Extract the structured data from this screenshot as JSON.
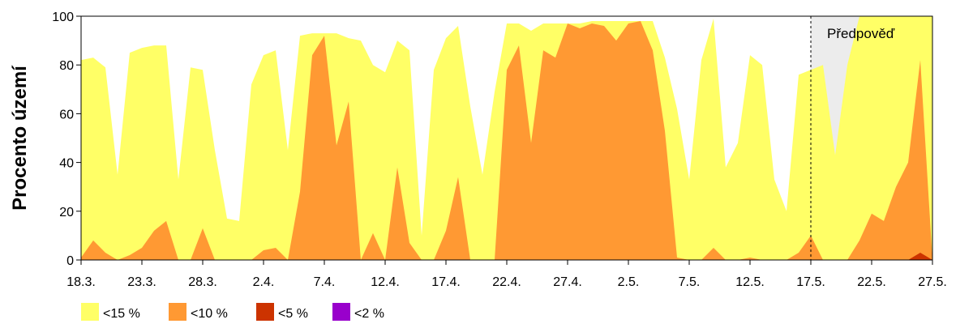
{
  "chart_data": {
    "type": "area",
    "title": "",
    "xlabel": "",
    "ylabel": "Procento území",
    "ylim": [
      0,
      100
    ],
    "yticks": [
      0,
      20,
      40,
      60,
      80,
      100
    ],
    "x_tick_labels": [
      "18.3.",
      "23.3.",
      "28.3.",
      "2.4.",
      "7.4.",
      "12.4.",
      "17.4.",
      "22.4.",
      "27.4.",
      "2.5.",
      "7.5.",
      "12.5.",
      "17.5.",
      "22.5.",
      "27.5."
    ],
    "x_tick_index": [
      0,
      5,
      10,
      15,
      20,
      25,
      30,
      35,
      40,
      45,
      50,
      55,
      60,
      65,
      70
    ],
    "x_days": [
      "18.3.",
      "19.3.",
      "20.3.",
      "21.3.",
      "22.3.",
      "23.3.",
      "24.3.",
      "25.3.",
      "26.3.",
      "27.3.",
      "28.3.",
      "29.3.",
      "30.3.",
      "31.3.",
      "1.4.",
      "2.4.",
      "3.4.",
      "4.4.",
      "5.4.",
      "6.4.",
      "7.4.",
      "8.4.",
      "9.4.",
      "10.4.",
      "11.4.",
      "12.4.",
      "13.4.",
      "14.4.",
      "15.4.",
      "16.4.",
      "17.4.",
      "18.4.",
      "19.4.",
      "20.4.",
      "21.4.",
      "22.4.",
      "23.4.",
      "24.4.",
      "25.4.",
      "26.4.",
      "27.4.",
      "28.4.",
      "29.4.",
      "30.4.",
      "1.5.",
      "2.5.",
      "3.5.",
      "4.5.",
      "5.5.",
      "6.5.",
      "7.5.",
      "8.5.",
      "9.5.",
      "10.5.",
      "11.5.",
      "12.5.",
      "13.5.",
      "14.5.",
      "15.5.",
      "16.5.",
      "17.5.",
      "18.5.",
      "19.5.",
      "20.5.",
      "21.5.",
      "22.5.",
      "23.5.",
      "24.5.",
      "25.5.",
      "26.5.",
      "27.5."
    ],
    "forecast": {
      "start": "17.5.",
      "label": "Předpověď",
      "fill": "#ececec"
    },
    "grid": false,
    "legend_position": "bottom-left",
    "series": [
      {
        "name": "<15 %",
        "color": "#ffff66",
        "values": [
          82,
          83,
          79,
          35,
          85,
          87,
          88,
          88,
          33,
          79,
          78,
          45,
          17,
          16,
          72,
          84,
          86,
          45,
          92,
          93,
          93,
          93,
          91,
          90,
          80,
          77,
          90,
          86,
          10,
          78,
          91,
          96,
          63,
          35,
          69,
          97,
          97,
          94,
          97,
          97,
          97,
          97,
          98,
          98,
          98,
          98,
          98,
          98,
          83,
          62,
          33,
          82,
          99,
          38,
          48,
          84,
          80,
          33,
          20,
          76,
          78,
          80,
          43,
          80,
          100,
          100,
          100,
          100,
          100,
          100,
          100
        ]
      },
      {
        "name": "<10 %",
        "color": "#ff9933",
        "values": [
          1,
          8,
          3,
          0,
          2,
          5,
          12,
          16,
          0,
          0,
          13,
          0,
          0,
          0,
          0,
          4,
          5,
          0,
          28,
          84,
          92,
          47,
          65,
          0,
          11,
          0,
          38,
          7,
          0,
          0,
          12,
          34,
          0,
          0,
          0,
          78,
          88,
          48,
          86,
          83,
          97,
          95,
          97,
          96,
          90,
          97,
          98,
          86,
          53,
          1,
          0,
          0,
          5,
          0,
          0,
          1,
          0,
          0,
          0,
          3,
          10,
          0,
          0,
          0,
          8,
          19,
          16,
          30,
          40,
          82,
          0
        ]
      },
      {
        "name": "<5 %",
        "color": "#cc3300",
        "values": [
          0,
          0,
          0,
          0,
          0,
          0,
          0,
          0,
          0,
          0,
          0,
          0,
          0,
          0,
          0,
          0,
          0,
          0,
          0,
          0,
          0,
          0,
          0,
          0,
          0,
          0,
          0,
          0,
          0,
          0,
          0,
          0,
          0,
          0,
          0,
          0,
          0,
          0,
          0,
          0,
          0,
          0,
          0,
          0,
          0,
          0,
          0,
          0,
          0,
          0,
          0,
          0,
          0,
          0,
          0,
          0,
          0,
          0,
          0,
          0,
          0,
          0,
          0,
          0,
          0,
          0,
          0,
          0,
          0,
          3,
          0
        ]
      },
      {
        "name": "<2 %",
        "color": "#9900cc",
        "values": [
          0,
          0,
          0,
          0,
          0,
          0,
          0,
          0,
          0,
          0,
          0,
          0,
          0,
          0,
          0,
          0,
          0,
          0,
          0,
          0,
          0,
          0,
          0,
          0,
          0,
          0,
          0,
          0,
          0,
          0,
          0,
          0,
          0,
          0,
          0,
          0,
          0,
          0,
          0,
          0,
          0,
          0,
          0,
          0,
          0,
          0,
          0,
          0,
          0,
          0,
          0,
          0,
          0,
          0,
          0,
          0,
          0,
          0,
          0,
          0,
          0,
          0,
          0,
          0,
          0,
          0,
          0,
          0,
          0,
          0,
          0
        ]
      }
    ]
  }
}
